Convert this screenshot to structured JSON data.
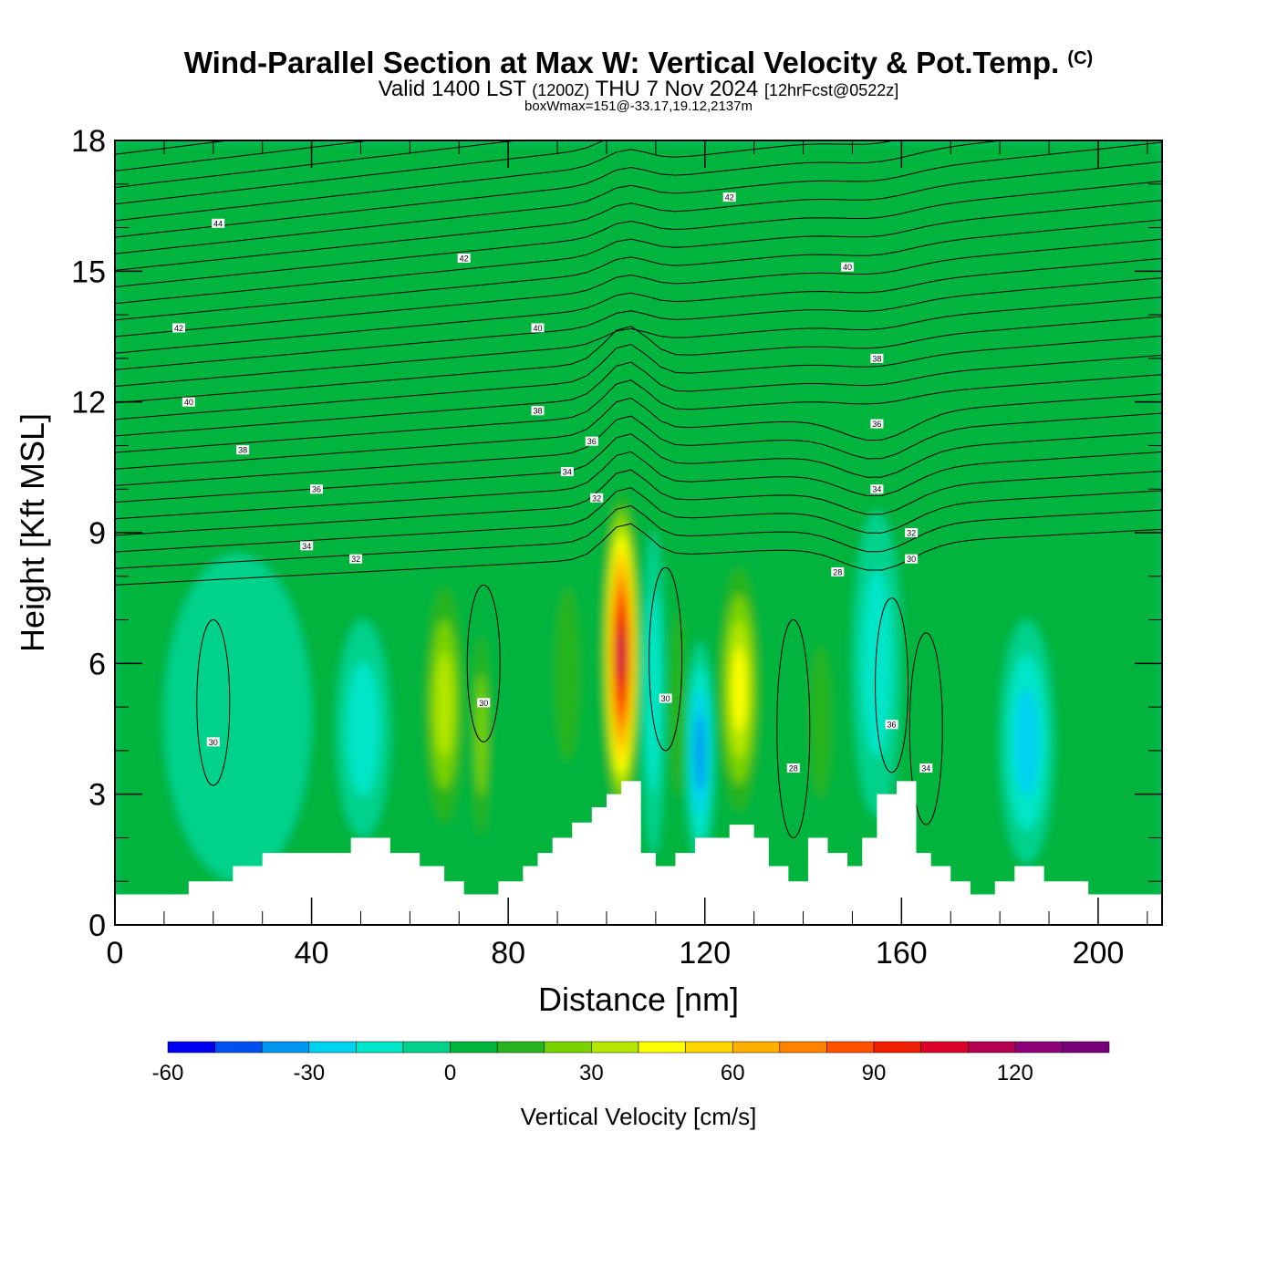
{
  "title": {
    "main": "Wind-Parallel Section at Max W: Vertical Velocity & Pot.Temp.",
    "copyright": "(C)",
    "valid_prefix": "Valid 1400 LST",
    "valid_zulu": "(1200Z)",
    "valid_date": "THU 7 Nov 2024",
    "forecast": "[12hrFcst@0522z]",
    "box_wmax": "boxWmax=151@-33.17,19.12,2137m"
  },
  "chart_data": {
    "type": "heatmap",
    "xlabel": "Distance [nm]",
    "ylabel": "Height [Kft MSL]",
    "xlim": [
      0,
      213
    ],
    "ylim": [
      0,
      18
    ],
    "x_ticks": [
      0,
      40,
      80,
      120,
      160,
      200
    ],
    "y_ticks": [
      0,
      3,
      6,
      9,
      12,
      15,
      18
    ],
    "grid": false,
    "colorbar": {
      "label": "Vertical Velocity [cm/s]",
      "placement": "bottom",
      "ticks": [
        -60,
        -30,
        0,
        30,
        60,
        90,
        120
      ],
      "levels": [
        -60,
        -50,
        -40,
        -30,
        -20,
        -10,
        0,
        10,
        20,
        30,
        40,
        50,
        60,
        70,
        80,
        90,
        100,
        110,
        120,
        130,
        140
      ],
      "colors": [
        "#0000f0",
        "#0050f0",
        "#0096f0",
        "#00d2f0",
        "#00e6c8",
        "#00d28c",
        "#00b43c",
        "#28b41e",
        "#78d200",
        "#b4e600",
        "#ffff00",
        "#ffd700",
        "#ffaf00",
        "#ff8200",
        "#ff5000",
        "#f01e00",
        "#dc0028",
        "#b40050",
        "#8c0078",
        "#780078"
      ]
    },
    "velocity_cells_cm_s": [
      {
        "x": [
          0,
          212
        ],
        "z": [
          0.8,
          18
        ],
        "w": 5
      },
      {
        "x": [
          10,
          40
        ],
        "z": [
          1.0,
          8.5
        ],
        "w": -15
      },
      {
        "x": [
          45,
          56
        ],
        "z": [
          2.0,
          7.0
        ],
        "w": -25
      },
      {
        "x": [
          62,
          72
        ],
        "z": [
          1.6,
          8.5
        ],
        "w": 45
      },
      {
        "x": [
          72,
          77
        ],
        "z": [
          1.2,
          7.5
        ],
        "w": 35
      },
      {
        "x": [
          88,
          96
        ],
        "z": [
          2.5,
          9.0
        ],
        "w": 25
      },
      {
        "x": [
          99,
          107
        ],
        "z": [
          2.2,
          10.2
        ],
        "w": 120
      },
      {
        "x": [
          107,
          112
        ],
        "z": [
          1.6,
          9.0
        ],
        "w": -25
      },
      {
        "x": [
          112,
          117
        ],
        "z": [
          1.6,
          8.5
        ],
        "w": 25
      },
      {
        "x": [
          116,
          122
        ],
        "z": [
          1.4,
          6.5
        ],
        "w": -45
      },
      {
        "x": [
          122,
          132
        ],
        "z": [
          2.0,
          8.8
        ],
        "w": 55
      },
      {
        "x": [
          140,
          147
        ],
        "z": [
          1.8,
          7.5
        ],
        "w": 25
      },
      {
        "x": [
          150,
          160
        ],
        "z": [
          2.5,
          9.5
        ],
        "w": -20
      },
      {
        "x": [
          180,
          191
        ],
        "z": [
          1.4,
          7.0
        ],
        "w": -30
      }
    ],
    "theta_contour_labels": [
      {
        "x": 21,
        "z": 16.1,
        "label": "44"
      },
      {
        "x": 71,
        "z": 15.3,
        "label": "42"
      },
      {
        "x": 125,
        "z": 16.7,
        "label": "42"
      },
      {
        "x": 13,
        "z": 13.7,
        "label": "42"
      },
      {
        "x": 86,
        "z": 13.7,
        "label": "40"
      },
      {
        "x": 149,
        "z": 15.1,
        "label": "40"
      },
      {
        "x": 15,
        "z": 12.0,
        "label": "40"
      },
      {
        "x": 86,
        "z": 11.8,
        "label": "38"
      },
      {
        "x": 155,
        "z": 13.0,
        "label": "38"
      },
      {
        "x": 26,
        "z": 10.9,
        "label": "38"
      },
      {
        "x": 97,
        "z": 11.1,
        "label": "36"
      },
      {
        "x": 155,
        "z": 11.5,
        "label": "36"
      },
      {
        "x": 41,
        "z": 10.0,
        "label": "36"
      },
      {
        "x": 92,
        "z": 10.4,
        "label": "34"
      },
      {
        "x": 155,
        "z": 10.0,
        "label": "34"
      },
      {
        "x": 39,
        "z": 8.7,
        "label": "34"
      },
      {
        "x": 98,
        "z": 9.8,
        "label": "32"
      },
      {
        "x": 49,
        "z": 8.4,
        "label": "32"
      },
      {
        "x": 162,
        "z": 9.0,
        "label": "32"
      },
      {
        "x": 162,
        "z": 8.4,
        "label": "30"
      },
      {
        "x": 147,
        "z": 8.1,
        "label": "28"
      },
      {
        "x": 20,
        "z": 4.2,
        "label": "30"
      },
      {
        "x": 75,
        "z": 5.1,
        "label": "30"
      },
      {
        "x": 112,
        "z": 5.2,
        "label": "30"
      },
      {
        "x": 138,
        "z": 3.6,
        "label": "28"
      },
      {
        "x": 158,
        "z": 4.6,
        "label": "36"
      },
      {
        "x": 165,
        "z": 3.6,
        "label": "34"
      }
    ],
    "terrain_kft": {
      "x": [
        0,
        15,
        24,
        30,
        48,
        56,
        62,
        67,
        71,
        78,
        83,
        86,
        89,
        93,
        97,
        100,
        103,
        107,
        110,
        114,
        118,
        120,
        125,
        130,
        133,
        137,
        141,
        145,
        149,
        152,
        155,
        159,
        163,
        166,
        170,
        174,
        179,
        183,
        189,
        198,
        213
      ],
      "z": [
        0.7,
        1.0,
        1.35,
        1.65,
        2.0,
        1.65,
        1.35,
        1.0,
        0.7,
        1.0,
        1.35,
        1.65,
        2.0,
        2.35,
        2.7,
        3.0,
        3.3,
        1.65,
        1.35,
        1.65,
        2.0,
        2.0,
        2.3,
        2.0,
        1.35,
        1.0,
        2.0,
        1.65,
        1.35,
        2.0,
        3.0,
        3.3,
        1.65,
        1.35,
        1.0,
        0.7,
        1.0,
        1.35,
        1.0,
        0.7,
        0.35
      ]
    }
  }
}
